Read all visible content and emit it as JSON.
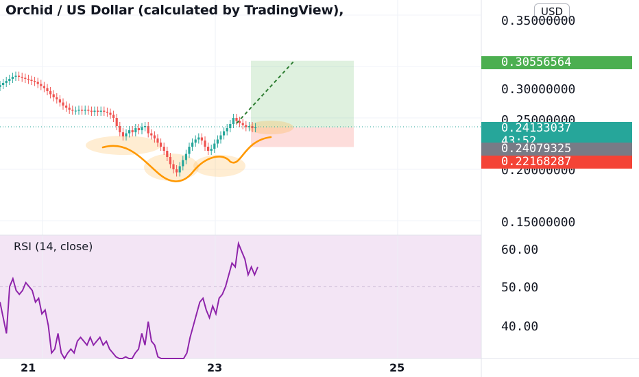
{
  "header": {
    "title": "Orchid / US Dollar (calculated by TradingView),",
    "currency_button": "USD"
  },
  "price_axis": {
    "labels": [
      "0.35000000",
      "0.30000000",
      "0.25000000",
      "0.20000000",
      "0.15000000"
    ]
  },
  "price_tags": {
    "target": "0.30556564",
    "current": "0.24133037",
    "countdown": "43:52",
    "entry": "0.24079325",
    "stop": "0.22168287"
  },
  "rsi_panel": {
    "label": "RSI (14, close)",
    "axis_labels": [
      "60.00",
      "50.00",
      "40.00"
    ]
  },
  "time_axis": {
    "labels": [
      "21",
      "23",
      "25"
    ]
  },
  "colors": {
    "up": "#26a69a",
    "down": "#ef5350",
    "rsi_line": "#8e24aa",
    "rsi_bg": "#f3e5f5",
    "annotation": "#ff9800",
    "target_tag": "#4caf50",
    "current_tag": "#26a69a",
    "entry_tag": "#787b86",
    "stop_tag": "#f44336"
  },
  "chart_data": [
    {
      "type": "candlestick",
      "title": "Orchid / US Dollar (calculated by TradingView),",
      "x_ticks": [
        "21",
        "23",
        "25"
      ],
      "ylim": [
        0.14,
        0.36
      ],
      "y_ticks": [
        0.15,
        0.2,
        0.25,
        0.3,
        0.35
      ],
      "close": [
        0.282,
        0.284,
        0.286,
        0.288,
        0.29,
        0.291,
        0.29,
        0.289,
        0.288,
        0.287,
        0.286,
        0.285,
        0.283,
        0.281,
        0.279,
        0.276,
        0.273,
        0.27,
        0.268,
        0.265,
        0.262,
        0.26,
        0.258,
        0.257,
        0.257,
        0.258,
        0.257,
        0.258,
        0.257,
        0.256,
        0.257,
        0.256,
        0.257,
        0.256,
        0.255,
        0.253,
        0.25,
        0.242,
        0.236,
        0.232,
        0.235,
        0.238,
        0.236,
        0.24,
        0.238,
        0.241,
        0.242,
        0.235,
        0.233,
        0.23,
        0.226,
        0.222,
        0.218,
        0.212,
        0.205,
        0.2,
        0.197,
        0.203,
        0.209,
        0.215,
        0.222,
        0.226,
        0.229,
        0.231,
        0.228,
        0.222,
        0.218,
        0.22,
        0.225,
        0.229,
        0.233,
        0.237,
        0.24,
        0.244,
        0.25,
        0.247,
        0.245,
        0.243,
        0.241,
        0.242,
        0.24,
        0.241
      ],
      "trade_setup": {
        "target": 0.30556564,
        "current_price": 0.24133037,
        "entry": 0.24079325,
        "stop": 0.22168287
      }
    },
    {
      "type": "line",
      "title": "RSI (14, close)",
      "ylim": [
        32,
        65
      ],
      "y_ticks": [
        40,
        50,
        60
      ],
      "series": [
        {
          "values": [
            46,
            42,
            38,
            50,
            52,
            49,
            48,
            49,
            51,
            50,
            49,
            46,
            47,
            43,
            44,
            40,
            33,
            34,
            38,
            33,
            31,
            33,
            34,
            33,
            36,
            37,
            36,
            35,
            37,
            35,
            36,
            37,
            35,
            36,
            34,
            33,
            32,
            29,
            31,
            32,
            30,
            31,
            33,
            34,
            38,
            35,
            41,
            36,
            35,
            32,
            30,
            31,
            30,
            29,
            28,
            26,
            28,
            30,
            33,
            37,
            40,
            43,
            46,
            47,
            44,
            42,
            45,
            43,
            47,
            48,
            50,
            53,
            56,
            55,
            61,
            59,
            57,
            53,
            55,
            53,
            55
          ]
        }
      ]
    }
  ]
}
